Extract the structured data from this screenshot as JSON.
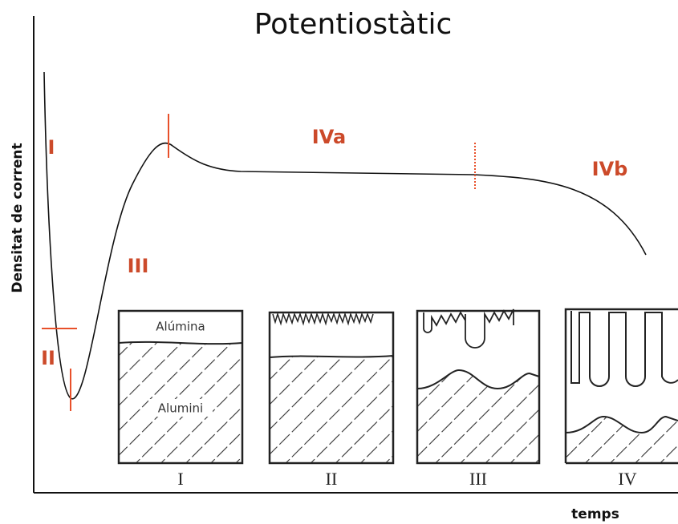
{
  "title": "Potentiostàtic",
  "y_axis_label": "Densitat de corrent",
  "x_axis_label": "temps",
  "stages": [
    "I",
    "II",
    "III",
    "IVa",
    "IVb"
  ],
  "inset": {
    "layers": [
      "Alúmina",
      "Alumini"
    ],
    "panels": [
      "I",
      "II",
      "III",
      "IV"
    ]
  }
}
